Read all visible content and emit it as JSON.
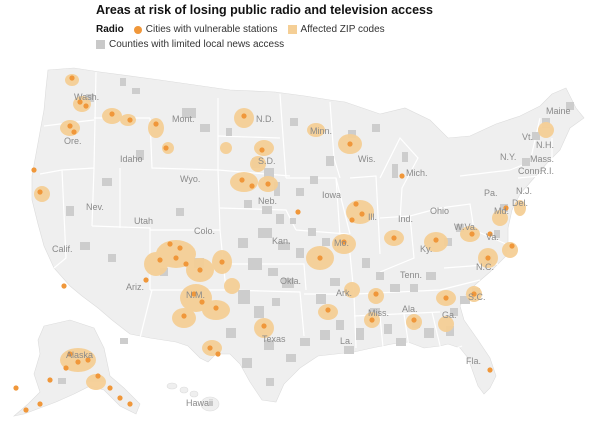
{
  "title": "Areas at risk of losing public radio and television access",
  "legend": {
    "heading": "Radio",
    "items": [
      {
        "label": "Cities with vulnerable stations",
        "color": "#f0973a",
        "icon": "dot"
      },
      {
        "label": "Affected ZIP codes",
        "color": "#f5cf96",
        "icon": "square"
      },
      {
        "label": "Counties with limited local news access",
        "color": "#c9c9c9",
        "icon": "square"
      }
    ]
  },
  "colors": {
    "land": "#efefef",
    "border": "#ffffff",
    "station": "#f0973a",
    "zip": "#f5cf96",
    "county": "#cdcdcd",
    "label": "#8a8a8a"
  },
  "states": [
    "Wash.",
    "Ore.",
    "Idaho",
    "Mont.",
    "Wyo.",
    "Nev.",
    "Calif.",
    "Utah",
    "Colo.",
    "Ariz.",
    "N.M.",
    "N.D.",
    "S.D.",
    "Neb.",
    "Kan.",
    "Okla.",
    "Texas",
    "Minn.",
    "Iowa",
    "Mo.",
    "Ark.",
    "La.",
    "Wis.",
    "Ill.",
    "Mich.",
    "Ind.",
    "Ohio",
    "Ky.",
    "Tenn.",
    "Miss.",
    "Ala.",
    "Ga.",
    "Fla.",
    "S.C.",
    "N.C.",
    "Va.",
    "W.Va.",
    "Pa.",
    "N.Y.",
    "Md.",
    "Del.",
    "N.J.",
    "Conn.",
    "R.I.",
    "Mass.",
    "Vt.",
    "N.H.",
    "Maine",
    "Alaska",
    "Hawaii"
  ]
}
